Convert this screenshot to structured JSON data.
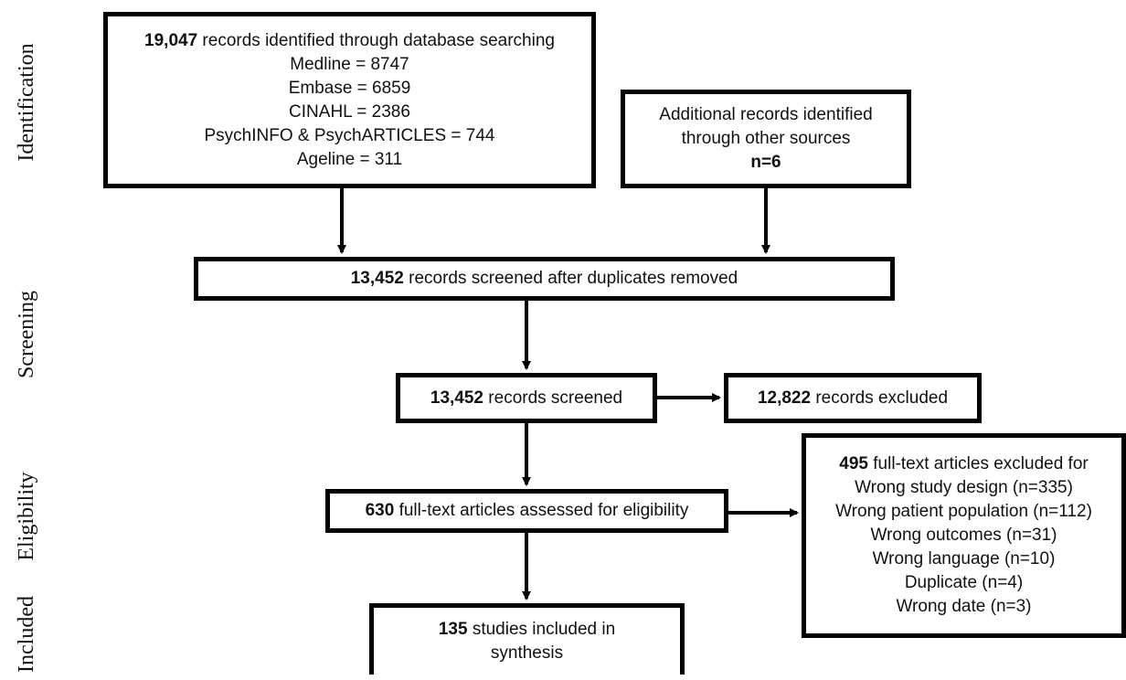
{
  "stages": {
    "identification": "Identification",
    "screening": "Screening",
    "eligibility": "Eligibility",
    "included": "Included"
  },
  "boxes": {
    "database": {
      "count": "19,047",
      "text": " records identified through database searching",
      "lines": [
        "Medline = 8747",
        "Embase = 6859",
        "CINAHL = 2386",
        "PsychINFO & PsychARTICLES = 744",
        "Ageline = 311"
      ]
    },
    "other_sources": {
      "line1": "Additional records identified",
      "line2": "through other sources",
      "count": "n=6"
    },
    "dedup": {
      "count": "13,452",
      "text": " records screened after duplicates removed"
    },
    "screened": {
      "count": "13,452",
      "text": " records screened"
    },
    "excluded": {
      "count": "12,822",
      "text": " records excluded"
    },
    "fulltext": {
      "count": "630",
      "text": " full-text articles assessed for eligibility"
    },
    "fulltext_excluded": {
      "count": "495",
      "text": " full-text articles excluded for",
      "reasons": [
        "Wrong study design (n=335)",
        "Wrong patient population (n=112)",
        "Wrong outcomes (n=31)",
        "Wrong language (n=10)",
        "Duplicate (n=4)",
        "Wrong date (n=3)"
      ]
    },
    "included": {
      "count": "135",
      "line1": " studies included in",
      "line2": "synthesis"
    }
  }
}
